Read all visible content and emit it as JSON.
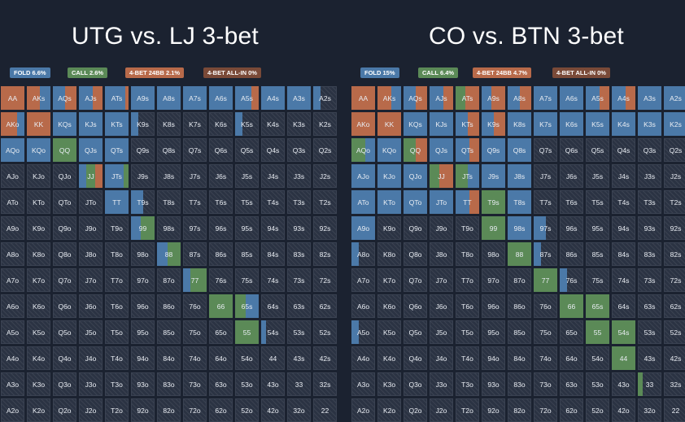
{
  "colors": {
    "fold": "#4b79a8",
    "call": "#5b8a57",
    "bet4": "#b86a4a",
    "allin": "#7a4a38",
    "cell_bg": "#2b3343"
  },
  "panels": [
    {
      "title": "UTG vs. LJ 3-bet",
      "legend": [
        {
          "label": "FOLD 6.6%",
          "color": "#4b79a8"
        },
        {
          "label": "CALL 2.6%",
          "color": "#5b8a57"
        },
        {
          "label": "4-BET 24BB 2.1%",
          "color": "#b86a4a"
        },
        {
          "label": "4-BET ALL-IN 0%",
          "color": "#7a4a38"
        }
      ],
      "fills": {
        "AA": [
          [
            "4",
            1
          ]
        ],
        "AKs": [
          [
            "4",
            0.55
          ],
          [
            "f",
            0.45
          ]
        ],
        "AQs": [
          [
            "f",
            0.5
          ],
          [
            "4",
            0.5
          ]
        ],
        "AJs": [
          [
            "f",
            0.6
          ],
          [
            "4",
            0.4
          ]
        ],
        "ATs": [
          [
            "f",
            0.85
          ],
          [
            "4",
            0.15
          ]
        ],
        "A9s": [
          [
            "f",
            1
          ]
        ],
        "A8s": [
          [
            "f",
            1
          ]
        ],
        "A7s": [
          [
            "f",
            1
          ]
        ],
        "A6s": [
          [
            "f",
            1
          ]
        ],
        "A5s": [
          [
            "f",
            0.7
          ],
          [
            "4",
            0.3
          ]
        ],
        "A4s": [
          [
            "f",
            1
          ]
        ],
        "A3s": [
          [
            "f",
            1
          ]
        ],
        "A2s": [
          [
            "f",
            0.3
          ]
        ],
        "AKo": [
          [
            "4",
            0.7
          ],
          [
            "f",
            0.3
          ]
        ],
        "KK": [
          [
            "4",
            1
          ]
        ],
        "KQs": [
          [
            "f",
            1
          ]
        ],
        "KJs": [
          [
            "f",
            1
          ]
        ],
        "KTs": [
          [
            "f",
            1
          ]
        ],
        "K9s": [
          [
            "f",
            0.3
          ]
        ],
        "K5s": [
          [
            "f",
            0.3
          ]
        ],
        "AQo": [
          [
            "f",
            1
          ]
        ],
        "KQo": [
          [
            "f",
            1
          ]
        ],
        "QQ": [
          [
            "c",
            1
          ]
        ],
        "QJs": [
          [
            "f",
            1
          ]
        ],
        "QTs": [
          [
            "f",
            1
          ]
        ],
        "JJ": [
          [
            "f",
            0.3
          ],
          [
            "c",
            0.4
          ],
          [
            "4",
            0.3
          ]
        ],
        "JTs": [
          [
            "f",
            0.8
          ],
          [
            "c",
            0.2
          ]
        ],
        "TT": [
          [
            "f",
            1
          ]
        ],
        "T9s": [
          [
            "f",
            0.5
          ]
        ],
        "99": [
          [
            "f",
            0.4
          ],
          [
            "c",
            0.6
          ]
        ],
        "88": [
          [
            "f",
            0.45
          ],
          [
            "c",
            0.55
          ]
        ],
        "77": [
          [
            "f",
            0.3
          ],
          [
            "c",
            0.7
          ]
        ],
        "66": [
          [
            "c",
            1
          ]
        ],
        "65s": [
          [
            "c",
            0.45
          ],
          [
            "f",
            0.55
          ]
        ],
        "55": [
          [
            "c",
            1
          ]
        ],
        "54s": [
          [
            "f",
            0.2
          ]
        ]
      }
    },
    {
      "title": "CO vs. BTN 3-bet",
      "legend": [
        {
          "label": "FOLD 15%",
          "color": "#4b79a8"
        },
        {
          "label": "CALL 6.4%",
          "color": "#5b8a57"
        },
        {
          "label": "4-BET 24BB 4.7%",
          "color": "#b86a4a"
        },
        {
          "label": "4-BET ALL-IN 0%",
          "color": "#7a4a38"
        }
      ],
      "fills": {
        "AA": [
          [
            "4",
            1
          ]
        ],
        "AKs": [
          [
            "4",
            0.6
          ],
          [
            "f",
            0.4
          ]
        ],
        "AQs": [
          [
            "f",
            0.5
          ],
          [
            "4",
            0.5
          ]
        ],
        "AJs": [
          [
            "f",
            0.6
          ],
          [
            "4",
            0.4
          ]
        ],
        "ATs": [
          [
            "c",
            0.4
          ],
          [
            "4",
            0.6
          ]
        ],
        "A9s": [
          [
            "f",
            0.4
          ],
          [
            "4",
            0.6
          ]
        ],
        "A8s": [
          [
            "f",
            0.5
          ],
          [
            "4",
            0.5
          ]
        ],
        "A7s": [
          [
            "f",
            1
          ]
        ],
        "A6s": [
          [
            "f",
            1
          ]
        ],
        "A5s": [
          [
            "f",
            0.6
          ],
          [
            "4",
            0.4
          ]
        ],
        "A4s": [
          [
            "f",
            0.6
          ],
          [
            "4",
            0.4
          ]
        ],
        "A3s": [
          [
            "f",
            1
          ]
        ],
        "A2s": [
          [
            "f",
            1
          ]
        ],
        "AKo": [
          [
            "4",
            1
          ]
        ],
        "KK": [
          [
            "4",
            1
          ]
        ],
        "KQs": [
          [
            "f",
            1
          ]
        ],
        "KJs": [
          [
            "f",
            1
          ]
        ],
        "KTs": [
          [
            "f",
            0.5
          ],
          [
            "4",
            0.5
          ]
        ],
        "K9s": [
          [
            "f",
            0.5
          ],
          [
            "4",
            0.5
          ]
        ],
        "K8s": [
          [
            "f",
            1
          ]
        ],
        "K7s": [
          [
            "f",
            1
          ]
        ],
        "K6s": [
          [
            "f",
            1
          ]
        ],
        "K5s": [
          [
            "f",
            1
          ]
        ],
        "K4s": [
          [
            "f",
            1
          ]
        ],
        "K3s": [
          [
            "f",
            1
          ]
        ],
        "K2s": [
          [
            "f",
            1
          ]
        ],
        "AQo": [
          [
            "c",
            0.6
          ],
          [
            "f",
            0.4
          ]
        ],
        "KQo": [
          [
            "f",
            1
          ]
        ],
        "QQ": [
          [
            "c",
            0.5
          ],
          [
            "4",
            0.5
          ]
        ],
        "QJs": [
          [
            "f",
            1
          ]
        ],
        "QTs": [
          [
            "f",
            0.6
          ],
          [
            "4",
            0.4
          ]
        ],
        "Q9s": [
          [
            "f",
            1
          ]
        ],
        "Q8s": [
          [
            "f",
            1
          ]
        ],
        "AJo": [
          [
            "f",
            1
          ]
        ],
        "KJo": [
          [
            "f",
            1
          ]
        ],
        "QJo": [
          [
            "f",
            1
          ]
        ],
        "JJ": [
          [
            "c",
            0.4
          ],
          [
            "4",
            0.6
          ]
        ],
        "JTs": [
          [
            "c",
            0.5
          ],
          [
            "f",
            0.5
          ]
        ],
        "J9s": [
          [
            "f",
            1
          ]
        ],
        "J8s": [
          [
            "f",
            1
          ]
        ],
        "ATo": [
          [
            "f",
            1
          ]
        ],
        "KTo": [
          [
            "f",
            1
          ]
        ],
        "QTo": [
          [
            "f",
            1
          ]
        ],
        "JTo": [
          [
            "f",
            1
          ]
        ],
        "TT": [
          [
            "f",
            0.6
          ],
          [
            "4",
            0.4
          ]
        ],
        "T9s": [
          [
            "c",
            1
          ]
        ],
        "T8s": [
          [
            "f",
            1
          ]
        ],
        "A9o": [
          [
            "f",
            1
          ]
        ],
        "99": [
          [
            "c",
            1
          ]
        ],
        "98s": [
          [
            "f",
            1
          ]
        ],
        "97s": [
          [
            "f",
            0.5
          ]
        ],
        "A8o": [
          [
            "f",
            0.3
          ]
        ],
        "88": [
          [
            "c",
            1
          ]
        ],
        "87s": [
          [
            "f",
            0.3
          ]
        ],
        "77": [
          [
            "c",
            1
          ]
        ],
        "76s": [
          [
            "f",
            0.3
          ]
        ],
        "66": [
          [
            "c",
            1
          ]
        ],
        "65s": [
          [
            "c",
            1
          ]
        ],
        "A5o": [
          [
            "f",
            0.3
          ]
        ],
        "55": [
          [
            "c",
            1
          ]
        ],
        "54s": [
          [
            "c",
            1
          ]
        ],
        "44": [
          [
            "c",
            1
          ]
        ],
        "33": [
          [
            "c",
            0.2
          ]
        ]
      }
    }
  ],
  "ranks": [
    "A",
    "K",
    "Q",
    "J",
    "T",
    "9",
    "8",
    "7",
    "6",
    "5",
    "4",
    "3",
    "2"
  ]
}
